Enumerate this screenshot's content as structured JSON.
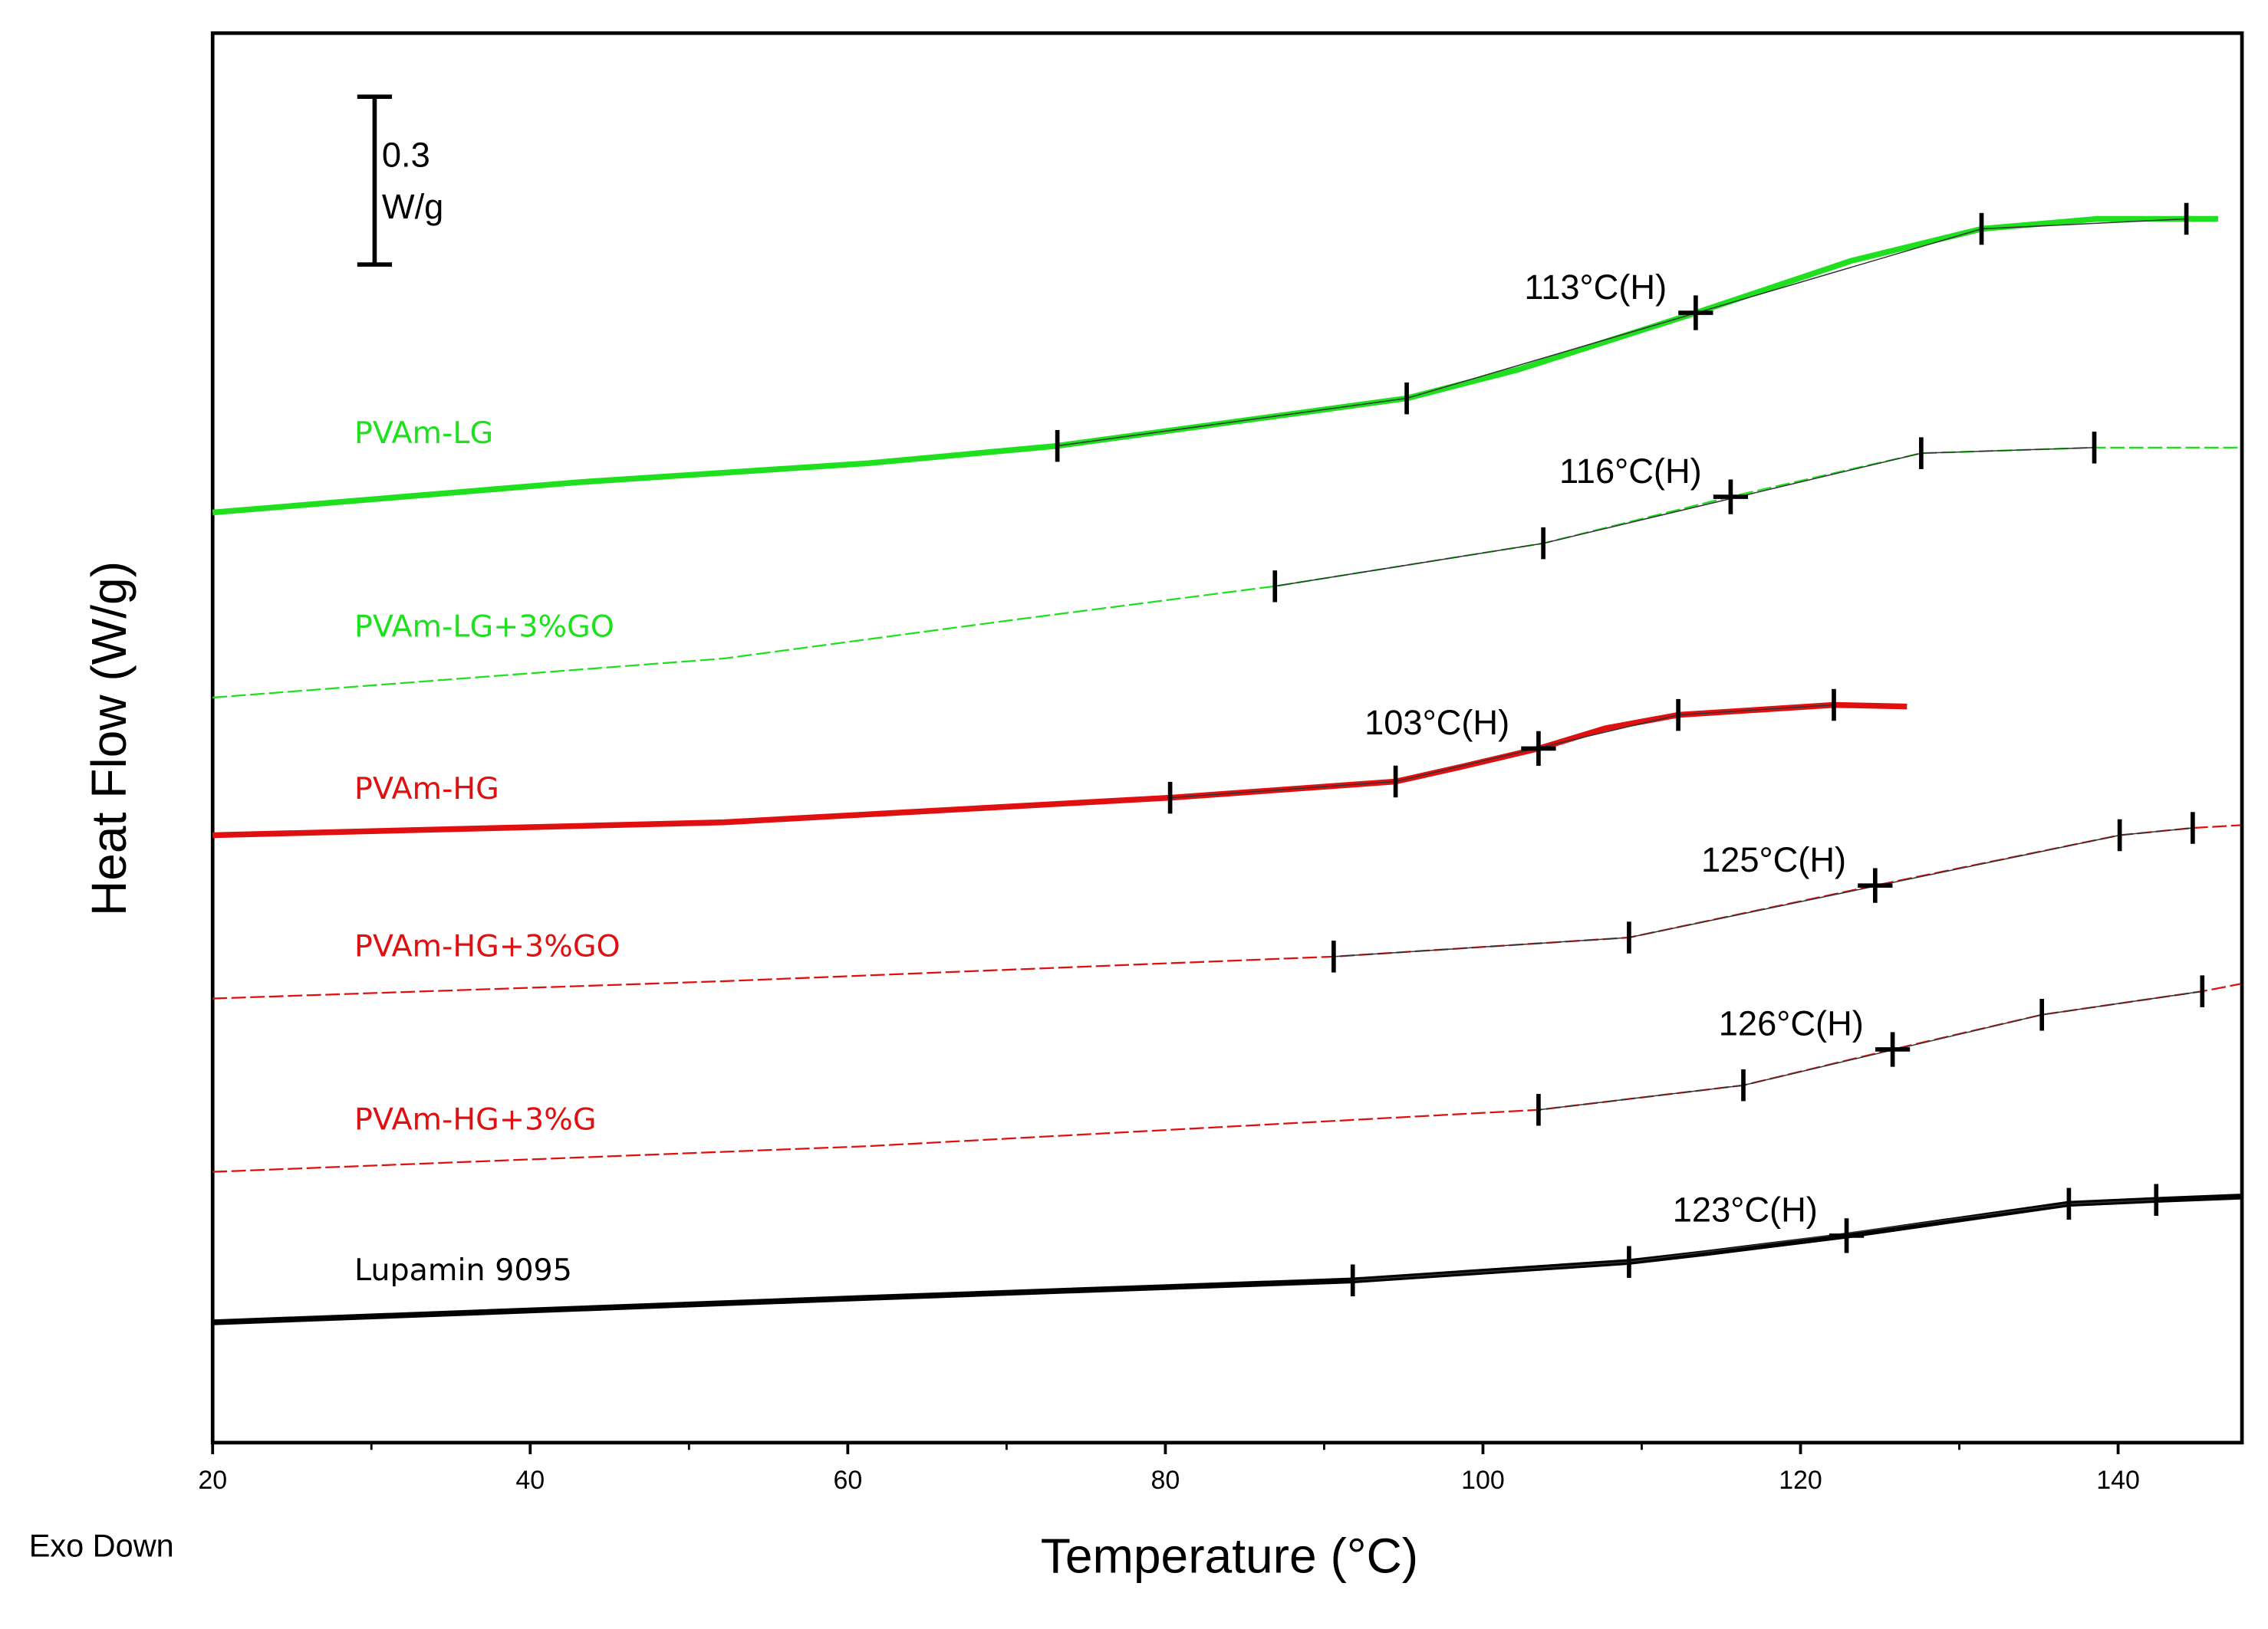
{
  "chart_data": {
    "type": "line",
    "xlabel": "Temperature (°C)",
    "ylabel": "Heat Flow (W/g)",
    "note": "Exo Down",
    "xlim": [
      20,
      147.8
    ],
    "xticks": [
      20,
      40,
      60,
      80,
      100,
      120,
      140
    ],
    "xminorticks": [
      30,
      50,
      70,
      90,
      110,
      130
    ],
    "ylim": [
      0,
      2.52
    ],
    "scale_bar": {
      "value": 0.3,
      "unit": "W/g"
    },
    "series": [
      {
        "name": "PVAm-LG",
        "color": "#1fe01f",
        "style": "solid",
        "x": [
          20,
          43,
          61.3,
          73.2,
          95.2,
          102.3,
          113.4,
          123.2,
          131.4,
          138.7,
          146.3
        ],
        "values": [
          1.663,
          1.717,
          1.751,
          1.782,
          1.867,
          1.919,
          2.02,
          2.113,
          2.17,
          2.188,
          2.188
        ],
        "markers": [
          73.2,
          95.2,
          131.4,
          144.3
        ]
      },
      {
        "name": "PVAm-LG+3%GO",
        "color": "#1fe01f",
        "style": "dashed",
        "x": [
          20,
          52.2,
          70.4,
          86.9,
          103.8,
          115.6,
          127.6,
          138.5,
          147.7
        ],
        "values": [
          1.332,
          1.402,
          1.471,
          1.531,
          1.608,
          1.691,
          1.769,
          1.779,
          1.779
        ],
        "markers": [
          86.9,
          103.8,
          127.6,
          138.5
        ]
      },
      {
        "name": "PVAm-HG",
        "color": "#e01010",
        "style": "solid",
        "x": [
          20,
          52.2,
          80.3,
          94.5,
          98.6,
          103.5,
          107.7,
          112.3,
          122.1,
          126.7
        ],
        "values": [
          1.086,
          1.109,
          1.153,
          1.182,
          1.208,
          1.241,
          1.277,
          1.301,
          1.319,
          1.316
        ],
        "markers": [
          80.3,
          94.5,
          112.3,
          122.1
        ]
      },
      {
        "name": "PVAm-HG+3%GO",
        "color": "#e01010",
        "style": "dashed",
        "x": [
          20,
          52.2,
          90.6,
          109.2,
          124.7,
          140.1,
          144.7,
          147.7
        ],
        "values": [
          0.794,
          0.825,
          0.869,
          0.903,
          0.996,
          1.086,
          1.099,
          1.104
        ],
        "markers": [
          90.6,
          109.2,
          140.1,
          144.7
        ]
      },
      {
        "name": "PVAm-HG+3%G",
        "color": "#e01010",
        "style": "dashed",
        "x": [
          20,
          61.3,
          103.5,
          116.4,
          125.8,
          135.2,
          145.3,
          147.7
        ],
        "values": [
          0.484,
          0.53,
          0.595,
          0.639,
          0.703,
          0.765,
          0.807,
          0.82
        ],
        "markers": [
          103.5,
          116.4,
          135.2,
          145.3
        ]
      },
      {
        "name": "Lupamin 9095",
        "color": "#000000",
        "style": "solid",
        "x": [
          20,
          61.3,
          91.8,
          109.2,
          114.1,
          122.9,
          136.9,
          142.4,
          147.7
        ],
        "values": [
          0.215,
          0.259,
          0.29,
          0.323,
          0.339,
          0.37,
          0.427,
          0.434,
          0.44
        ],
        "markers": [
          91.8,
          109.2,
          136.9,
          142.4
        ]
      }
    ],
    "annotations": [
      {
        "text": "113°C(H)",
        "x": 113.4,
        "y": 2.02
      },
      {
        "text": "116°C(H)",
        "x": 115.6,
        "y": 1.691
      },
      {
        "text": "103°C(H)",
        "x": 103.5,
        "y": 1.241
      },
      {
        "text": "125°C(H)",
        "x": 124.7,
        "y": 0.996
      },
      {
        "text": "126°C(H)",
        "x": 125.8,
        "y": 0.703
      },
      {
        "text": "123°C(H)",
        "x": 122.9,
        "y": 0.37
      }
    ]
  }
}
